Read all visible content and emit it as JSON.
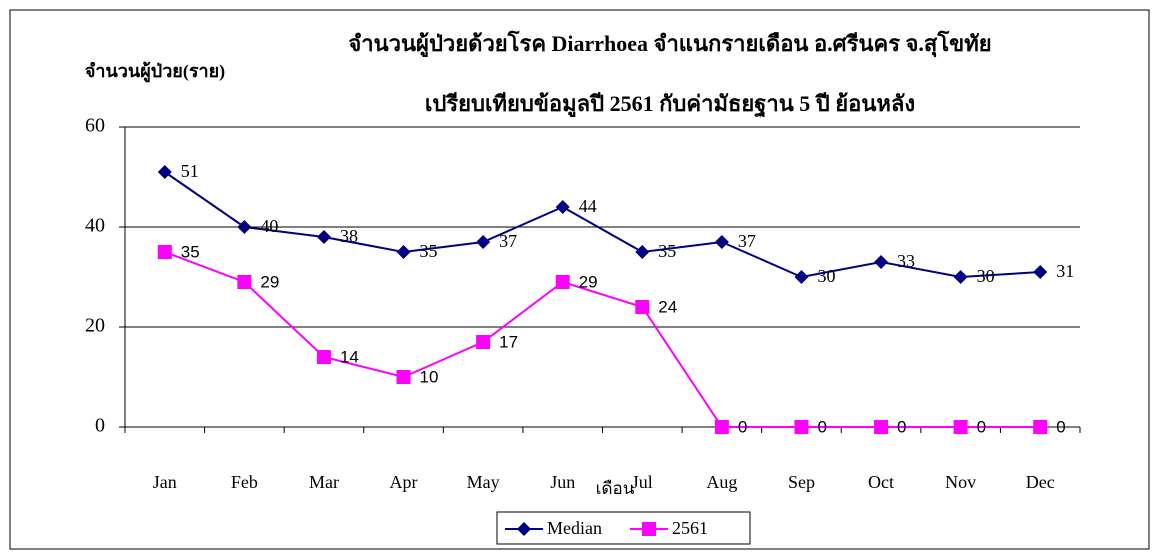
{
  "chart_data": {
    "type": "line",
    "title": "จำนวนผู้ป่วยด้วยโรค  Diarrhoea  จำแนกรายเดือน   อ.ศรีนคร จ.สุโขทัย",
    "subtitle": "เปรียบเทียบข้อมูลปี  2561  กับค่ามัธยฐาน 5 ปี ย้อนหลัง",
    "y_label": "จำนวนผู้ป่วย(ราย)",
    "x_label": "เดือน",
    "categories": [
      "Jan",
      "Feb",
      "Mar",
      "Apr",
      "May",
      "Jun",
      "Jul",
      "Aug",
      "Sep",
      "Oct",
      "Nov",
      "Dec"
    ],
    "series": [
      {
        "name": "Median",
        "color": "#000080",
        "marker": "diamond",
        "values": [
          51,
          40,
          38,
          35,
          37,
          44,
          35,
          37,
          30,
          33,
          30,
          31
        ]
      },
      {
        "name": "2561",
        "color": "#ff00ff",
        "marker": "square",
        "values": [
          35,
          29,
          14,
          10,
          17,
          29,
          24,
          0,
          0,
          0,
          0,
          0
        ]
      }
    ],
    "ylim": [
      0,
      60
    ],
    "yticks": [
      0,
      20,
      40,
      60
    ],
    "grid": true,
    "legend": "bottom"
  }
}
